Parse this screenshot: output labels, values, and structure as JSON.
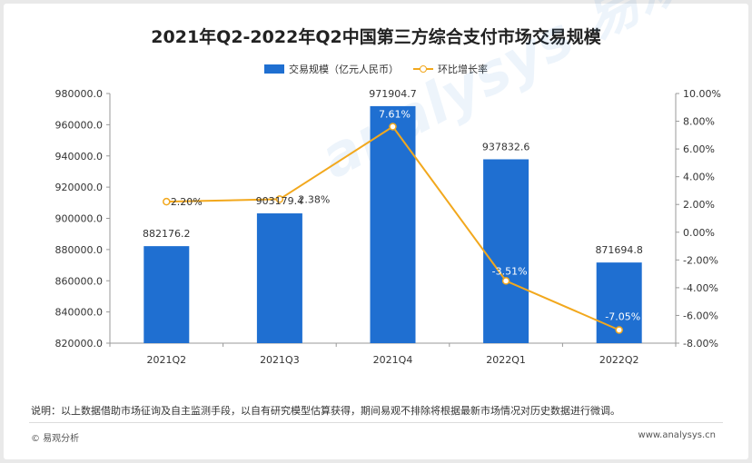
{
  "header": {
    "title": "2021年Q2-2022年Q2中国第三方综合支付市场交易规模"
  },
  "legend": {
    "bar_label": "交易规模（亿元人民币）",
    "line_label": "环比增长率"
  },
  "watermark": "analysys 易观分析",
  "footer": {
    "note": "说明：以上数据借助市场征询及自主监测手段，以自有研究模型估算获得，期间易观不排除将根据最新市场情况对历史数据进行微调。",
    "copyright": "© 易观分析",
    "website": "www.analysys.cn"
  },
  "colors": {
    "bar": "#1f6fd1",
    "line": "#f2a81d"
  },
  "chart_data": {
    "type": "bar",
    "categories": [
      "2021Q2",
      "2021Q3",
      "2021Q4",
      "2022Q1",
      "2022Q2"
    ],
    "series": [
      {
        "name": "交易规模（亿元人民币）",
        "type": "bar",
        "axis": "left",
        "values": [
          882176.2,
          903179.4,
          971904.7,
          937832.6,
          871694.8
        ],
        "labels": [
          "882176.2",
          "903179.4",
          "971904.7",
          "937832.6",
          "871694.8"
        ]
      },
      {
        "name": "环比增长率",
        "type": "line",
        "axis": "right",
        "values": [
          2.2,
          2.38,
          7.61,
          -3.51,
          -7.05
        ],
        "labels": [
          "2.20%",
          "2.38%",
          "7.61%",
          "-3.51%",
          "-7.05%"
        ]
      }
    ],
    "y_left": {
      "min": 820000,
      "max": 980000,
      "ticks": [
        "980000.0",
        "960000.0",
        "940000.0",
        "920000.0",
        "900000.0",
        "880000.0",
        "860000.0",
        "840000.0",
        "820000.0"
      ]
    },
    "y_right": {
      "min": -8,
      "max": 10,
      "ticks": [
        "10.00%",
        "8.00%",
        "6.00%",
        "4.00%",
        "2.00%",
        "0.00%",
        "-2.00%",
        "-4.00%",
        "-6.00%",
        "-8.00%"
      ]
    },
    "grid": false,
    "legend_position": "top"
  }
}
